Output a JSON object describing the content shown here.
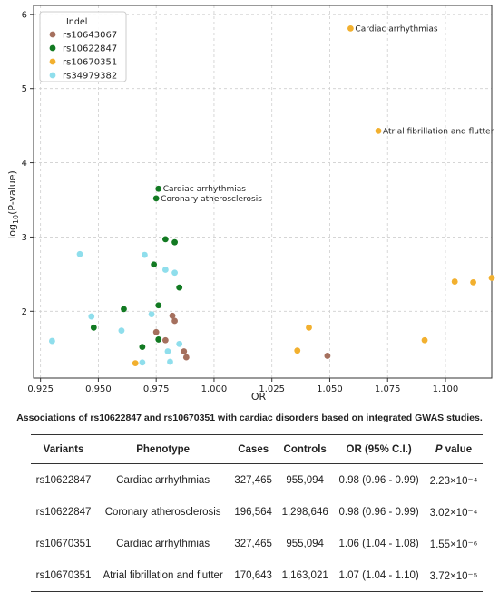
{
  "chart_data": {
    "type": "scatter",
    "title": "",
    "xlabel": "OR",
    "ylabel_base": "log",
    "ylabel_sub": "10",
    "ylabel_rest": "(P-value)",
    "xlim": [
      0.922,
      1.12
    ],
    "ylim": [
      1.1,
      6.12
    ],
    "x_ticks": [
      0.925,
      0.95,
      0.975,
      1.0,
      1.025,
      1.05,
      1.075,
      1.1
    ],
    "x_tick_labels": [
      "0.925",
      "0.950",
      "0.975",
      "1.000",
      "1.025",
      "1.050",
      "1.075",
      "1.100"
    ],
    "y_ticks": [
      2,
      3,
      4,
      5,
      6
    ],
    "y_tick_labels": [
      "2",
      "3",
      "4",
      "5",
      "6"
    ],
    "grid": true,
    "legend_title": "Indel",
    "legend_position": "top-left",
    "series": [
      {
        "name": "rs10643067",
        "color": "#a5705e",
        "points": [
          [
            0.975,
            1.72
          ],
          [
            0.979,
            1.61
          ],
          [
            0.982,
            1.94
          ],
          [
            0.983,
            1.87
          ],
          [
            0.987,
            1.46
          ],
          [
            0.988,
            1.38
          ],
          [
            1.049,
            1.4
          ]
        ]
      },
      {
        "name": "rs10622847",
        "color": "#127a22",
        "points": [
          [
            0.976,
            3.65
          ],
          [
            0.975,
            3.52
          ],
          [
            0.979,
            2.97
          ],
          [
            0.983,
            2.93
          ],
          [
            0.974,
            2.63
          ],
          [
            0.985,
            2.32
          ],
          [
            0.976,
            2.08
          ],
          [
            0.961,
            2.03
          ],
          [
            0.948,
            1.78
          ],
          [
            0.976,
            1.62
          ],
          [
            0.969,
            1.52
          ]
        ]
      },
      {
        "name": "rs10670351",
        "color": "#f2b02f",
        "points": [
          [
            1.059,
            5.81
          ],
          [
            1.071,
            4.43
          ],
          [
            1.104,
            2.4
          ],
          [
            1.112,
            2.39
          ],
          [
            1.12,
            2.45
          ],
          [
            1.041,
            1.78
          ],
          [
            1.091,
            1.61
          ],
          [
            1.036,
            1.47
          ],
          [
            0.966,
            1.3
          ]
        ]
      },
      {
        "name": "rs34979382",
        "color": "#8fdeec",
        "points": [
          [
            0.942,
            2.77
          ],
          [
            0.97,
            2.76
          ],
          [
            0.979,
            2.56
          ],
          [
            0.983,
            2.52
          ],
          [
            0.973,
            1.96
          ],
          [
            0.947,
            1.93
          ],
          [
            0.96,
            1.74
          ],
          [
            0.93,
            1.6
          ],
          [
            0.985,
            1.56
          ],
          [
            0.98,
            1.46
          ],
          [
            0.969,
            1.31
          ],
          [
            0.981,
            1.32
          ]
        ]
      }
    ],
    "annotations": [
      {
        "text": "Cardiac arrhythmias",
        "x": 1.059,
        "y": 5.81
      },
      {
        "text": "Atrial fibrillation and flutter",
        "x": 1.071,
        "y": 4.43
      },
      {
        "text": "Cardiac arrhythmias",
        "x": 0.976,
        "y": 3.65
      },
      {
        "text": "Coronary atherosclerosis",
        "x": 0.975,
        "y": 3.52
      }
    ]
  },
  "table": {
    "caption": "Associations of rs10622847 and rs10670351 with cardiac disorders based on integrated GWAS studies.",
    "headers": {
      "variants": "Variants",
      "phenotype": "Phenotype",
      "cases": "Cases",
      "controls": "Controls",
      "or": "OR (95% C.I.)",
      "p_italic": "P",
      "p_rest": " value"
    },
    "rows": [
      {
        "variant": "rs10622847",
        "phenotype": "Cardiac arrhythmias",
        "cases": "327,465",
        "controls": "955,094",
        "or": "0.98 (0.96 - 0.99)",
        "p": "2.23×10⁻⁴"
      },
      {
        "variant": "rs10622847",
        "phenotype": "Coronary atherosclerosis",
        "cases": "196,564",
        "controls": "1,298,646",
        "or": "0.98 (0.96 - 0.99)",
        "p": "3.02×10⁻⁴"
      },
      {
        "variant": "rs10670351",
        "phenotype": "Cardiac arrhythmias",
        "cases": "327,465",
        "controls": "955,094",
        "or": "1.06 (1.04 - 1.08)",
        "p": "1.55×10⁻⁶"
      },
      {
        "variant": "rs10670351",
        "phenotype": "Atrial fibrillation and flutter",
        "cases": "170,643",
        "controls": "1,163,021",
        "or": "1.07 (1.04 - 1.10)",
        "p": "3.72×10⁻⁵"
      }
    ]
  }
}
